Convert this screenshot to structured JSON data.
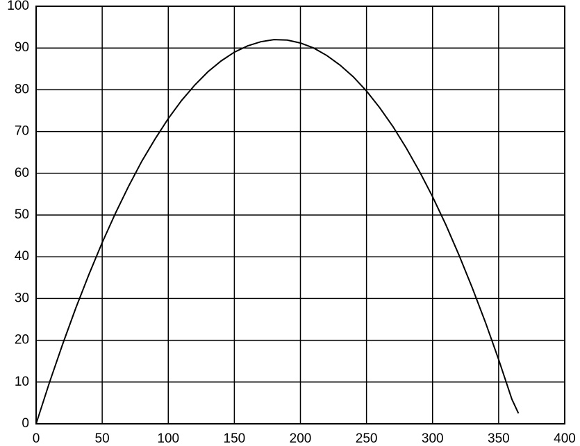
{
  "chart_data": {
    "type": "line",
    "x": [
      0,
      10,
      20,
      30,
      40,
      50,
      60,
      70,
      80,
      90,
      100,
      110,
      120,
      130,
      140,
      150,
      160,
      170,
      180,
      190,
      200,
      210,
      220,
      230,
      240,
      250,
      260,
      270,
      280,
      290,
      300,
      310,
      320,
      330,
      340,
      350,
      360,
      365
    ],
    "values": [
      0,
      9.8,
      19.0,
      27.7,
      35.8,
      43.4,
      50.4,
      56.9,
      62.9,
      68.2,
      73.1,
      77.4,
      81.1,
      84.3,
      86.9,
      89.0,
      90.5,
      91.5,
      92.0,
      91.9,
      91.2,
      90.0,
      88.2,
      85.9,
      83.1,
      79.7,
      75.7,
      71.2,
      66.1,
      60.5,
      54.4,
      47.7,
      40.4,
      32.6,
      24.3,
      15.4,
      5.9,
      2.5
    ],
    "color": "#000000",
    "xlim": [
      0,
      400
    ],
    "xticks": [
      0,
      50,
      100,
      150,
      200,
      250,
      300,
      350,
      400
    ],
    "ylim": [
      0,
      100
    ],
    "yticks": [
      0,
      10,
      20,
      30,
      40,
      50,
      60,
      70,
      80,
      90,
      100
    ],
    "grid": true
  }
}
